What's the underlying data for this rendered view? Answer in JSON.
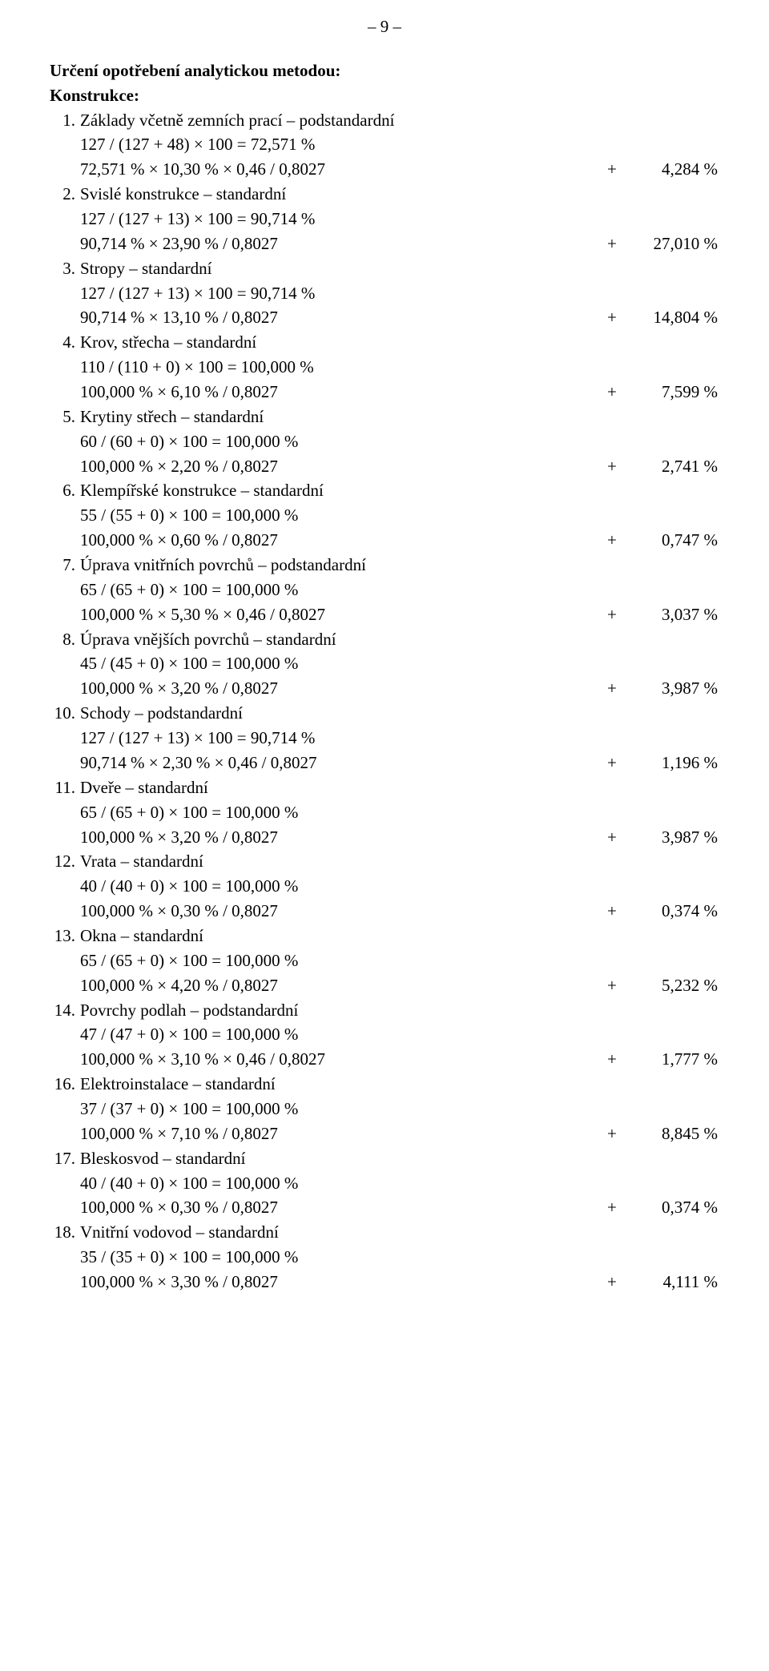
{
  "page_number": "– 9 –",
  "heading": "Určení opotřebení analytickou metodou:",
  "subheading": "Konstrukce:",
  "items": [
    {
      "num": "1.",
      "title": "Základy včetně zemních prací – podstandardní",
      "line1": "127 / (127 + 48) × 100 = 72,571 %",
      "line2": "72,571 % × 10,30 % × 0,46 / 0,8027",
      "plus": "+",
      "value": "4,284 %"
    },
    {
      "num": "2.",
      "title": "Svislé konstrukce – standardní",
      "line1": "127 / (127 + 13) × 100 = 90,714 %",
      "line2": "90,714 % × 23,90 % / 0,8027",
      "plus": "+",
      "value": "27,010 %"
    },
    {
      "num": "3.",
      "title": "Stropy – standardní",
      "line1": "127 / (127 + 13) × 100 = 90,714 %",
      "line2": "90,714 % × 13,10 % / 0,8027",
      "plus": "+",
      "value": "14,804 %"
    },
    {
      "num": "4.",
      "title": "Krov, střecha – standardní",
      "line1": "110 / (110 + 0) × 100 = 100,000 %",
      "line2": "100,000 % × 6,10 % / 0,8027",
      "plus": "+",
      "value": "7,599 %"
    },
    {
      "num": "5.",
      "title": "Krytiny střech – standardní",
      "line1": "60 / (60 + 0) × 100 = 100,000 %",
      "line2": "100,000 % × 2,20 % / 0,8027",
      "plus": "+",
      "value": "2,741 %"
    },
    {
      "num": "6.",
      "title": "Klempířské konstrukce – standardní",
      "line1": "55 / (55 + 0) × 100 = 100,000 %",
      "line2": "100,000 % × 0,60 % / 0,8027",
      "plus": "+",
      "value": "0,747 %"
    },
    {
      "num": "7.",
      "title": "Úprava vnitřních povrchů – podstandardní",
      "line1": "65 / (65 + 0) × 100 = 100,000 %",
      "line2": "100,000 % × 5,30 % × 0,46 / 0,8027",
      "plus": "+",
      "value": "3,037 %"
    },
    {
      "num": "8.",
      "title": "Úprava vnějších povrchů – standardní",
      "line1": "45 / (45 + 0) × 100 = 100,000 %",
      "line2": "100,000 % × 3,20 % / 0,8027",
      "plus": "+",
      "value": "3,987 %"
    },
    {
      "num": "10.",
      "title": "Schody – podstandardní",
      "line1": "127 / (127 + 13) × 100 = 90,714 %",
      "line2": "90,714 % × 2,30 % × 0,46 / 0,8027",
      "plus": "+",
      "value": "1,196 %"
    },
    {
      "num": "11.",
      "title": "Dveře – standardní",
      "line1": "65 / (65 + 0) × 100 = 100,000 %",
      "line2": "100,000 % × 3,20 % / 0,8027",
      "plus": "+",
      "value": "3,987 %"
    },
    {
      "num": "12.",
      "title": "Vrata – standardní",
      "line1": "40 / (40 + 0) × 100 = 100,000 %",
      "line2": "100,000 % × 0,30 % / 0,8027",
      "plus": "+",
      "value": "0,374 %"
    },
    {
      "num": "13.",
      "title": "Okna – standardní",
      "line1": "65 / (65 + 0) × 100 = 100,000 %",
      "line2": "100,000 % × 4,20 % / 0,8027",
      "plus": "+",
      "value": "5,232 %"
    },
    {
      "num": "14.",
      "title": "Povrchy podlah – podstandardní",
      "line1": "47 / (47 + 0) × 100 = 100,000 %",
      "line2": "100,000 % × 3,10 % × 0,46 / 0,8027",
      "plus": "+",
      "value": "1,777 %"
    },
    {
      "num": "16.",
      "title": "Elektroinstalace – standardní",
      "line1": "37 / (37 + 0) × 100 = 100,000 %",
      "line2": "100,000 % × 7,10 % / 0,8027",
      "plus": "+",
      "value": "8,845 %"
    },
    {
      "num": "17.",
      "title": "Bleskosvod – standardní",
      "line1": "40 / (40 + 0) × 100 = 100,000 %",
      "line2": "100,000 % × 0,30 % / 0,8027",
      "plus": "+",
      "value": "0,374 %"
    },
    {
      "num": "18.",
      "title": "Vnitřní vodovod – standardní",
      "line1": "35 / (35 + 0) × 100 = 100,000 %",
      "line2": "100,000 % × 3,30 % / 0,8027",
      "plus": "+",
      "value": "4,111 %"
    }
  ]
}
